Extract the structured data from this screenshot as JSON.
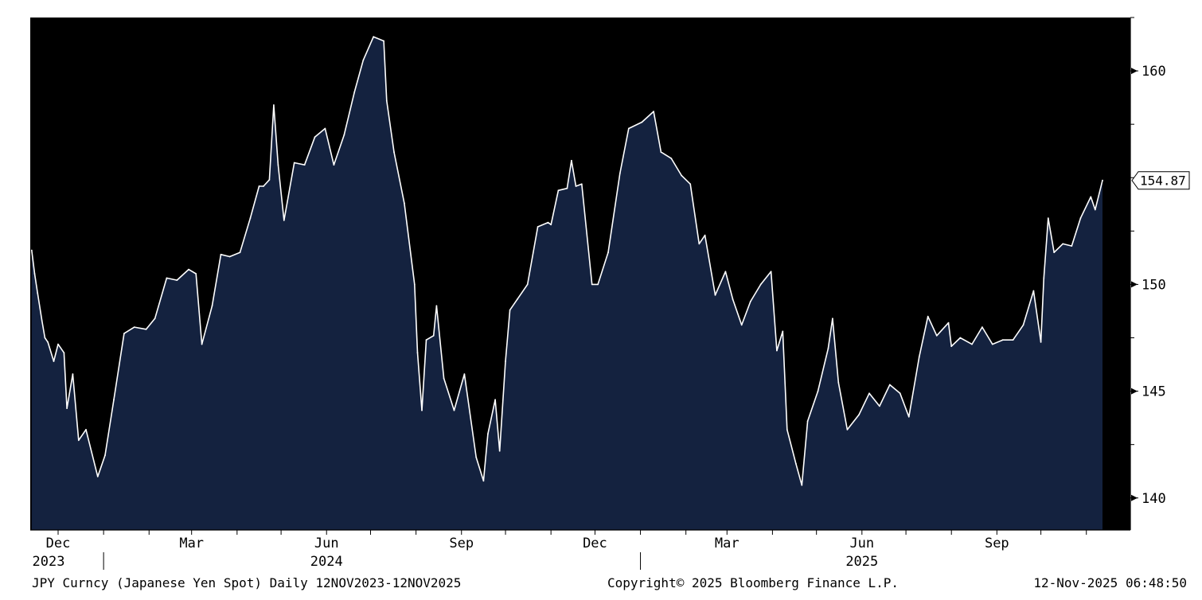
{
  "chart_data": {
    "type": "area",
    "title": "",
    "xlabel": "",
    "ylabel": "",
    "ylim": [
      138.5,
      162.5
    ],
    "x_range": [
      "2023-11-12",
      "2025-11-12"
    ],
    "y_ticks": [
      140,
      145,
      150,
      160
    ],
    "y_axis_position": "right",
    "grid": false,
    "x_month_ticks": [
      {
        "date": "2023-12-01",
        "label": "Dec"
      },
      {
        "date": "2024-03-01",
        "label": "Mar"
      },
      {
        "date": "2024-06-01",
        "label": "Jun"
      },
      {
        "date": "2024-09-01",
        "label": "Sep"
      },
      {
        "date": "2024-12-01",
        "label": "Dec"
      },
      {
        "date": "2025-03-01",
        "label": "Mar"
      },
      {
        "date": "2025-06-01",
        "label": "Jun"
      },
      {
        "date": "2025-09-01",
        "label": "Sep"
      }
    ],
    "x_year_labels": [
      {
        "date": "2023-12-01",
        "label": "2023"
      },
      {
        "date": "2024-06-01",
        "label": "2024"
      },
      {
        "date": "2025-06-01",
        "label": "2025"
      }
    ],
    "x_year_separators": [
      "2024-01-01",
      "2025-01-01"
    ],
    "last_price": {
      "value": 154.87,
      "label": "154.87"
    },
    "colors": {
      "background": "#000000",
      "area_fill": "#14223f",
      "line": "#ffffff",
      "axis": "#000000"
    },
    "series": [
      {
        "x": [
          "2023-11-13",
          "2023-11-15",
          "2023-11-17",
          "2023-11-20",
          "2023-11-22",
          "2023-11-24",
          "2023-11-28",
          "2023-12-01",
          "2023-12-05",
          "2023-12-07",
          "2023-12-11",
          "2023-12-15",
          "2023-12-20",
          "2023-12-28",
          "2024-01-02",
          "2024-01-08",
          "2024-01-15",
          "2024-01-22",
          "2024-01-30",
          "2024-02-05",
          "2024-02-13",
          "2024-02-20",
          "2024-02-28",
          "2024-03-04",
          "2024-03-08",
          "2024-03-15",
          "2024-03-21",
          "2024-03-27",
          "2024-04-03",
          "2024-04-10",
          "2024-04-16",
          "2024-04-19",
          "2024-04-23",
          "2024-04-26",
          "2024-04-29",
          "2024-05-03",
          "2024-05-10",
          "2024-05-17",
          "2024-05-24",
          "2024-05-31",
          "2024-06-06",
          "2024-06-13",
          "2024-06-20",
          "2024-06-26",
          "2024-07-03",
          "2024-07-10",
          "2024-07-12",
          "2024-07-17",
          "2024-07-24",
          "2024-07-31",
          "2024-08-02",
          "2024-08-05",
          "2024-08-08",
          "2024-08-13",
          "2024-08-15",
          "2024-08-20",
          "2024-08-27",
          "2024-09-03",
          "2024-09-11",
          "2024-09-16",
          "2024-09-19",
          "2024-09-24",
          "2024-09-27",
          "2024-10-01",
          "2024-10-04",
          "2024-10-09",
          "2024-10-16",
          "2024-10-23",
          "2024-10-30",
          "2024-11-01",
          "2024-11-06",
          "2024-11-12",
          "2024-11-15",
          "2024-11-18",
          "2024-11-22",
          "2024-11-29",
          "2024-12-03",
          "2024-12-10",
          "2024-12-18",
          "2024-12-24",
          "2025-01-02",
          "2025-01-10",
          "2025-01-15",
          "2025-01-22",
          "2025-01-29",
          "2025-02-04",
          "2025-02-10",
          "2025-02-14",
          "2025-02-21",
          "2025-02-28",
          "2025-03-05",
          "2025-03-11",
          "2025-03-17",
          "2025-03-24",
          "2025-03-31",
          "2025-04-04",
          "2025-04-08",
          "2025-04-11",
          "2025-04-17",
          "2025-04-21",
          "2025-04-25",
          "2025-05-02",
          "2025-05-09",
          "2025-05-12",
          "2025-05-16",
          "2025-05-22",
          "2025-05-30",
          "2025-06-06",
          "2025-06-13",
          "2025-06-20",
          "2025-06-27",
          "2025-07-03",
          "2025-07-10",
          "2025-07-16",
          "2025-07-22",
          "2025-07-30",
          "2025-08-01",
          "2025-08-07",
          "2025-08-15",
          "2025-08-22",
          "2025-08-29",
          "2025-09-05",
          "2025-09-12",
          "2025-09-19",
          "2025-09-26",
          "2025-10-01",
          "2025-10-03",
          "2025-10-06",
          "2025-10-10",
          "2025-10-16",
          "2025-10-22",
          "2025-10-28",
          "2025-11-04",
          "2025-11-07",
          "2025-11-12"
        ],
        "y": [
          151.6,
          150.5,
          149.6,
          148.3,
          147.5,
          147.3,
          146.4,
          147.2,
          146.8,
          144.2,
          145.8,
          142.7,
          143.2,
          141.0,
          142.0,
          144.6,
          147.7,
          148.0,
          147.9,
          148.4,
          150.3,
          150.2,
          150.7,
          150.5,
          147.2,
          149.0,
          151.4,
          151.3,
          151.5,
          153.1,
          154.6,
          154.6,
          154.9,
          158.4,
          155.6,
          153.0,
          155.7,
          155.6,
          156.9,
          157.3,
          155.6,
          157.0,
          159.0,
          160.5,
          161.6,
          161.4,
          158.6,
          156.2,
          153.8,
          150.0,
          146.8,
          144.1,
          147.4,
          147.6,
          149.0,
          145.6,
          144.1,
          145.8,
          141.9,
          140.8,
          143.0,
          144.6,
          142.2,
          146.4,
          148.8,
          149.3,
          150.0,
          152.7,
          152.9,
          152.8,
          154.4,
          154.5,
          155.8,
          154.6,
          154.7,
          150.0,
          150.0,
          151.5,
          155.2,
          157.3,
          157.6,
          158.1,
          156.2,
          155.9,
          155.1,
          154.7,
          151.9,
          152.3,
          149.5,
          150.6,
          149.3,
          148.1,
          149.2,
          150.0,
          150.6,
          146.9,
          147.8,
          143.2,
          141.6,
          140.6,
          143.6,
          145.0,
          147.0,
          148.4,
          145.4,
          143.2,
          143.9,
          144.9,
          144.3,
          145.3,
          144.9,
          143.8,
          146.6,
          148.5,
          147.6,
          148.2,
          147.1,
          147.5,
          147.2,
          148.0,
          147.2,
          147.4,
          147.4,
          148.1,
          149.7,
          147.3,
          150.3,
          153.1,
          151.5,
          151.9,
          151.8,
          153.1,
          154.1,
          153.5,
          154.87
        ]
      }
    ]
  },
  "footer": {
    "left": "JPY Curncy (Japanese Yen Spot) Daily 12NOV2023-12NOV2025",
    "center": "Copyright© 2025 Bloomberg Finance L.P.",
    "right": "12-Nov-2025 06:48:50"
  }
}
